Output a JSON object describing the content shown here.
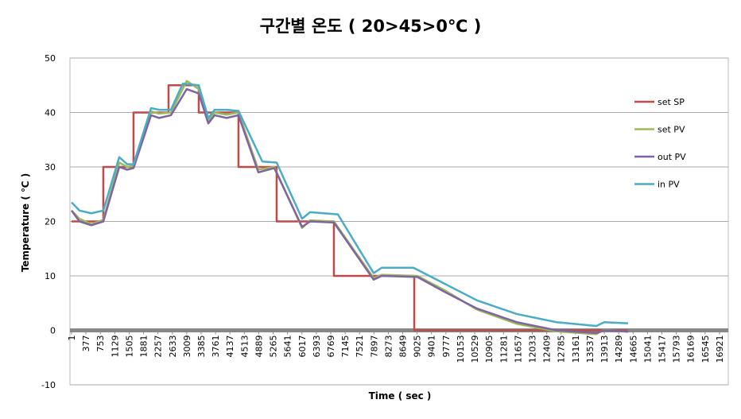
{
  "chart_data": {
    "type": "line",
    "title": "구간별 온도 ( 20>45>0℃ )",
    "x_label": "Time ( sec )",
    "y_label": "Temperature ( ℃ )",
    "xlim": [
      -40,
      17150
    ],
    "xticks": [
      1,
      377,
      753,
      1129,
      1505,
      1881,
      2257,
      2633,
      3009,
      3385,
      3761,
      4137,
      4513,
      4889,
      5265,
      5641,
      6017,
      6393,
      6769,
      7145,
      7521,
      7897,
      8273,
      8649,
      9025,
      9401,
      9777,
      10153,
      10529,
      10905,
      11281,
      11657,
      12033,
      12409,
      12785,
      13161,
      13537,
      13913,
      14289,
      14665,
      15041,
      15417,
      15793,
      16169,
      16545,
      16921
    ],
    "ylim": [
      -10,
      50
    ],
    "yticks": [
      -10,
      0,
      10,
      20,
      30,
      40,
      50
    ],
    "grid": true,
    "legend": "right",
    "series": [
      {
        "name": "set SP",
        "color": "#be4b48",
        "x": [
          1,
          831,
          831,
          1620,
          1620,
          2534,
          2534,
          3323,
          3323,
          4360,
          4360,
          5357,
          5357,
          6852,
          6852,
          8950,
          8950,
          14500
        ],
        "values": [
          20,
          20,
          30,
          30,
          40,
          40,
          45,
          45,
          40,
          40,
          30,
          30,
          20,
          20,
          10,
          10,
          0,
          0
        ]
      },
      {
        "name": "set PV",
        "color": "#9bbb59",
        "x": [
          1,
          208,
          520,
          831,
          1247,
          1454,
          1620,
          2077,
          2285,
          2596,
          3009,
          3323,
          3572,
          3738,
          4049,
          4360,
          4880,
          5295,
          6021,
          6229,
          6852,
          7890,
          8098,
          9032,
          9759,
          10590,
          11627,
          12665,
          13703,
          13911,
          14534
        ],
        "values": [
          22,
          20.5,
          19.5,
          20.3,
          30.8,
          30,
          30.2,
          40.2,
          39.8,
          40,
          45.8,
          44.3,
          38.5,
          40,
          39.6,
          40,
          29.5,
          30,
          18.8,
          20.2,
          20,
          9.6,
          10.2,
          10,
          7.3,
          3.8,
          1.2,
          -0.2,
          -0.7,
          0.1,
          -0.3
        ]
      },
      {
        "name": "out PV",
        "color": "#8064a2",
        "x": [
          1,
          208,
          520,
          831,
          1247,
          1454,
          1620,
          2077,
          2285,
          2596,
          3009,
          3323,
          3572,
          3738,
          4049,
          4360,
          4880,
          5295,
          6021,
          6229,
          6852,
          7890,
          8098,
          9032,
          9759,
          10590,
          11627,
          12665,
          13703,
          13911,
          14534
        ],
        "values": [
          22,
          20,
          19.3,
          20,
          30,
          29.5,
          29.8,
          39.5,
          39,
          39.5,
          44.3,
          43.5,
          38,
          39.5,
          39,
          39.5,
          29,
          29.8,
          19,
          20,
          19.8,
          9.3,
          10,
          9.8,
          7,
          4,
          1.5,
          0,
          -0.5,
          0,
          -0.2
        ]
      },
      {
        "name": "in PV",
        "color": "#4bacc6",
        "x": [
          1,
          208,
          520,
          831,
          1247,
          1454,
          1620,
          2077,
          2285,
          2596,
          2907,
          3323,
          3572,
          3738,
          4049,
          4360,
          4983,
          5357,
          6021,
          6229,
          6956,
          7890,
          8098,
          8929,
          9759,
          10590,
          11627,
          12665,
          13703,
          13911,
          14534
        ],
        "values": [
          23.5,
          22,
          21.5,
          22,
          31.8,
          30.5,
          30.5,
          40.8,
          40.5,
          40.5,
          45.3,
          45,
          39,
          40.5,
          40.5,
          40.3,
          31,
          30.8,
          20.5,
          21.7,
          21.3,
          10.5,
          11.5,
          11.5,
          8.5,
          5.5,
          3,
          1.5,
          0.8,
          1.5,
          1.3
        ]
      }
    ]
  }
}
